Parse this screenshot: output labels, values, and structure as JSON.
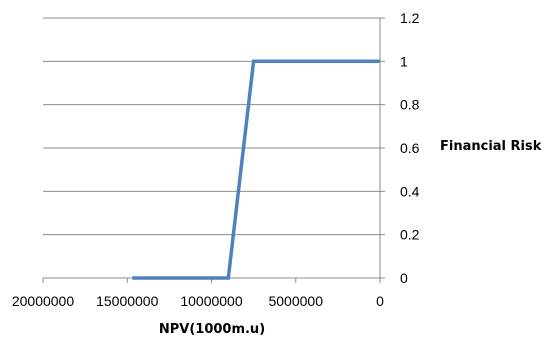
{
  "chart_data": {
    "type": "line",
    "title": "",
    "xlabel": "NPV(1000m.u)",
    "ylabel": "Financial Risk",
    "x_reversed": true,
    "xlim": [
      0,
      20000000
    ],
    "ylim": [
      0,
      1.2
    ],
    "x_ticks": [
      20000000,
      15000000,
      10000000,
      5000000,
      0
    ],
    "x_tick_labels": [
      "20000000",
      "15000000",
      "10000000",
      "5000000",
      "0"
    ],
    "y_ticks": [
      0,
      0.2,
      0.4,
      0.6,
      0.8,
      1,
      1.2
    ],
    "y_tick_labels": [
      "0",
      "0.2",
      "0.4",
      "0.6",
      "0.8",
      "1",
      "1.2"
    ],
    "y_axis_side": "right",
    "grid": "horizontal",
    "legend": "none",
    "series": [
      {
        "color": "#4f81bd",
        "points": [
          {
            "x": 14700000,
            "y": 0
          },
          {
            "x": 9000000,
            "y": 0
          },
          {
            "x": 7500000,
            "y": 1
          },
          {
            "x": 0,
            "y": 1
          }
        ]
      }
    ]
  }
}
